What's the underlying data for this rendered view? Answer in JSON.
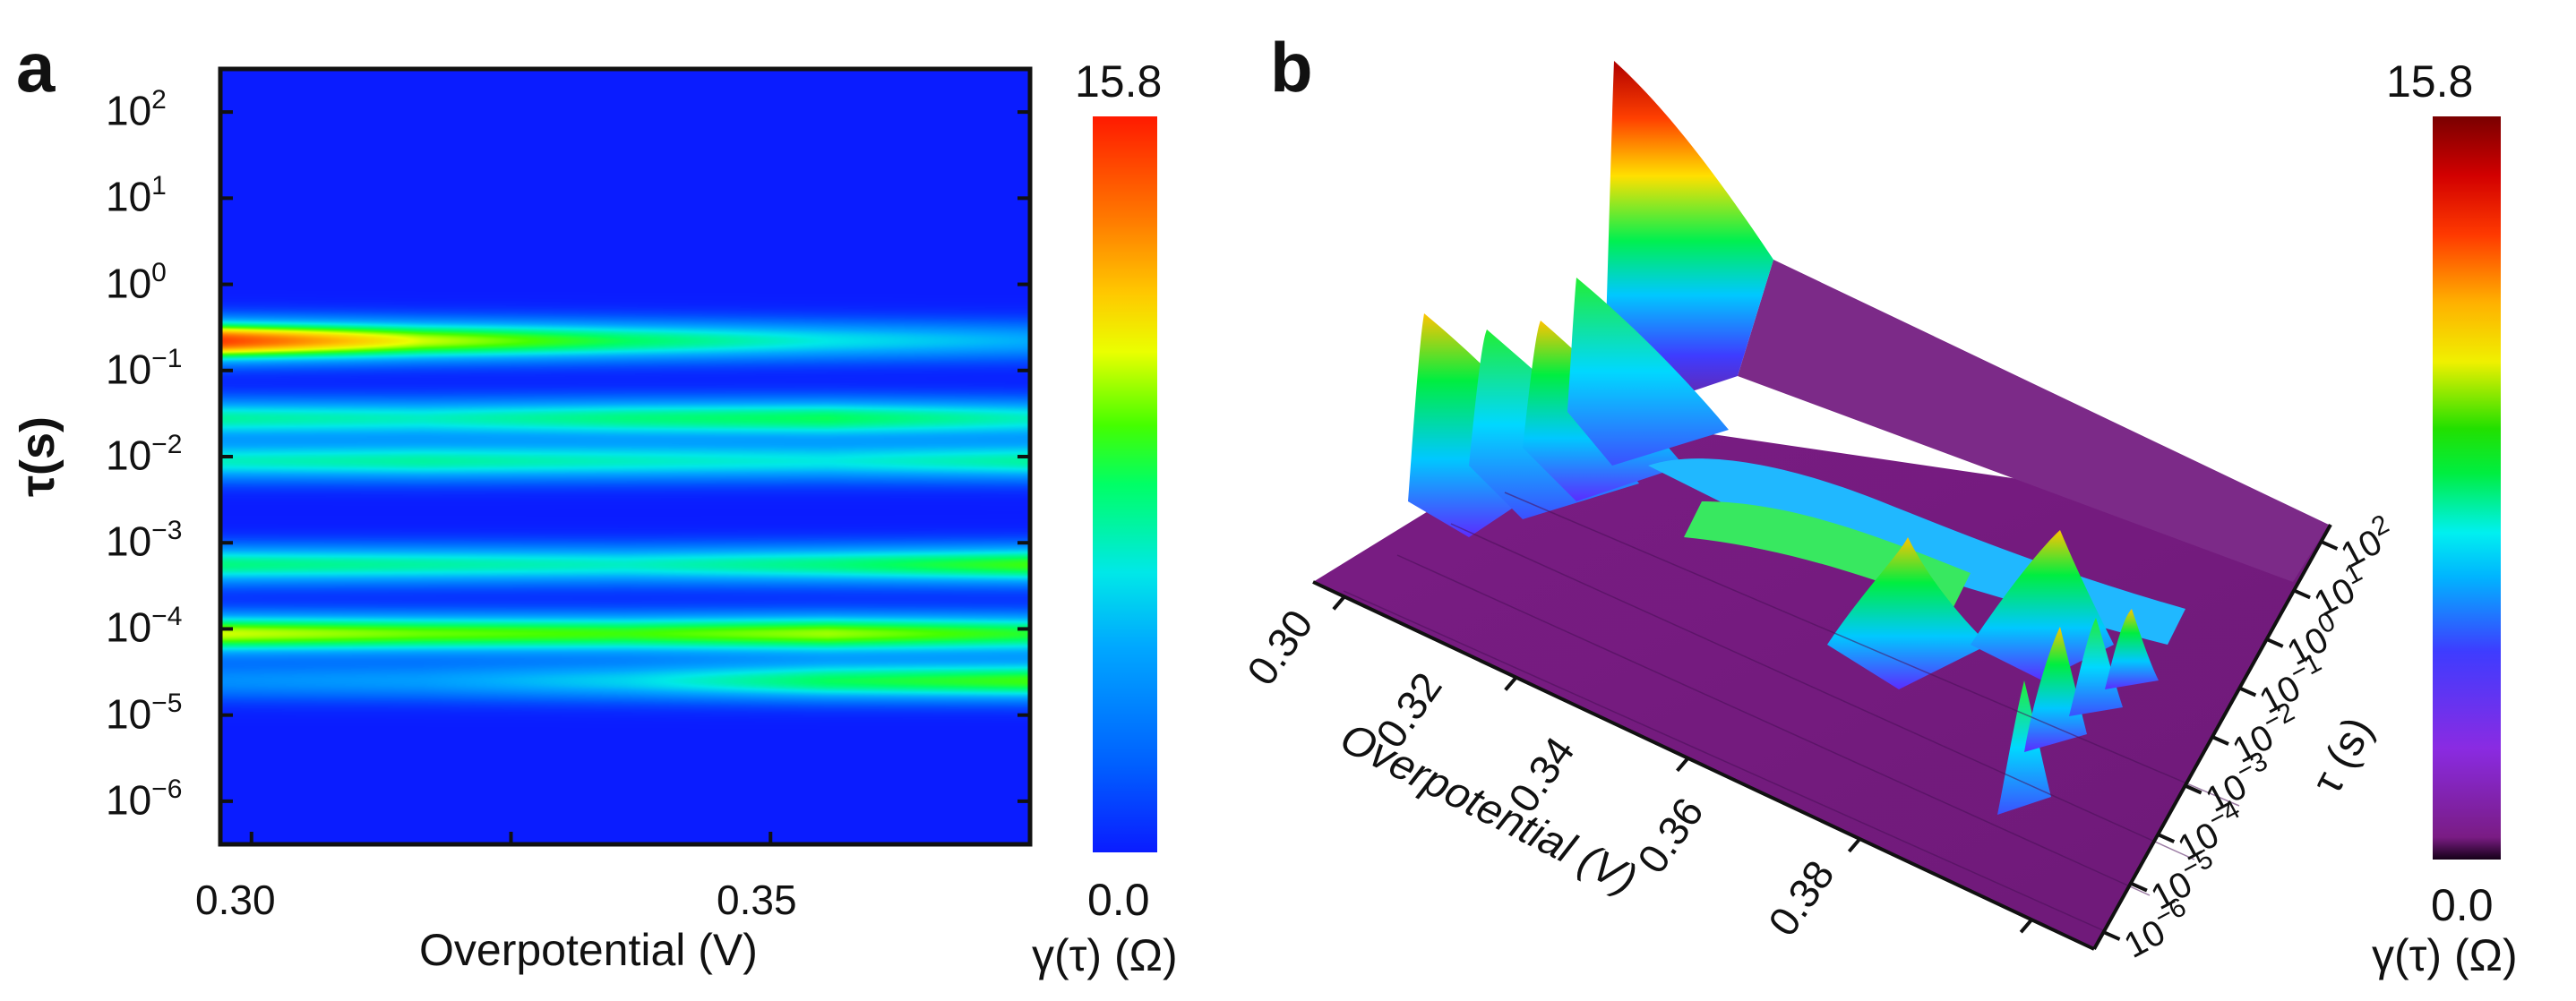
{
  "figure": {
    "panels": [
      "a",
      "b"
    ]
  },
  "chart_data": [
    {
      "type": "heatmap",
      "panel": "a",
      "title": "",
      "xlabel": "Overpotential (V)",
      "ylabel": "τ(s)",
      "xlim": [
        0.297,
        0.375
      ],
      "ylim_log10": [
        -6.5,
        2.5
      ],
      "x_ticks": [
        "0.30",
        "0.35"
      ],
      "y_ticks": [
        {
          "base": "10",
          "exp": "2"
        },
        {
          "base": "10",
          "exp": "1"
        },
        {
          "base": "10",
          "exp": "0"
        },
        {
          "base": "10",
          "exp": "−1"
        },
        {
          "base": "10",
          "exp": "−2"
        },
        {
          "base": "10",
          "exp": "−3"
        },
        {
          "base": "10",
          "exp": "−4"
        },
        {
          "base": "10",
          "exp": "−5"
        },
        {
          "base": "10",
          "exp": "−6"
        }
      ],
      "colorbar": {
        "label": "γ(τ) (Ω)",
        "min": "0.0",
        "max": "15.8",
        "colormap": "jet"
      },
      "peaks": [
        {
          "log_tau": -0.65,
          "amplitude": [
            15.0,
            10.5,
            8.0,
            6.0,
            4.5
          ]
        },
        {
          "log_tau": -1.55,
          "amplitude": [
            7.0,
            6.5,
            7.5,
            8.0,
            6.5
          ]
        },
        {
          "log_tau": -2.05,
          "amplitude": [
            6.5,
            7.0,
            6.5,
            6.0,
            7.0
          ]
        },
        {
          "log_tau": -3.25,
          "amplitude": [
            7.5,
            7.0,
            6.5,
            7.5,
            9.0
          ]
        },
        {
          "log_tau": -4.05,
          "amplitude": [
            10.5,
            9.5,
            9.0,
            10.0,
            8.5
          ]
        },
        {
          "log_tau": -4.6,
          "amplitude": [
            3.5,
            4.0,
            5.5,
            8.0,
            9.0
          ]
        }
      ]
    },
    {
      "type": "surface3d",
      "panel": "b",
      "title": "",
      "xlabel": "Overpotential (V)",
      "ylabel": "τ (s)",
      "zlabel": "γ(τ) (Ω)",
      "x_ticks": [
        "0.30",
        "0.32",
        "0.34",
        "0.36",
        "0.38"
      ],
      "y_ticks": [
        {
          "base": "10",
          "exp": "2"
        },
        {
          "base": "10",
          "exp": "1"
        },
        {
          "base": "10",
          "exp": "0"
        },
        {
          "base": "10",
          "exp": "−1"
        },
        {
          "base": "10",
          "exp": "−2"
        },
        {
          "base": "10",
          "exp": "−3"
        },
        {
          "base": "10",
          "exp": "−4"
        },
        {
          "base": "10",
          "exp": "−5"
        },
        {
          "base": "10",
          "exp": "−6"
        }
      ],
      "colorbar": {
        "label": "γ(τ) (Ω)",
        "min": "0.0",
        "max": "15.8",
        "colormap": "rainbow-purple"
      }
    }
  ]
}
